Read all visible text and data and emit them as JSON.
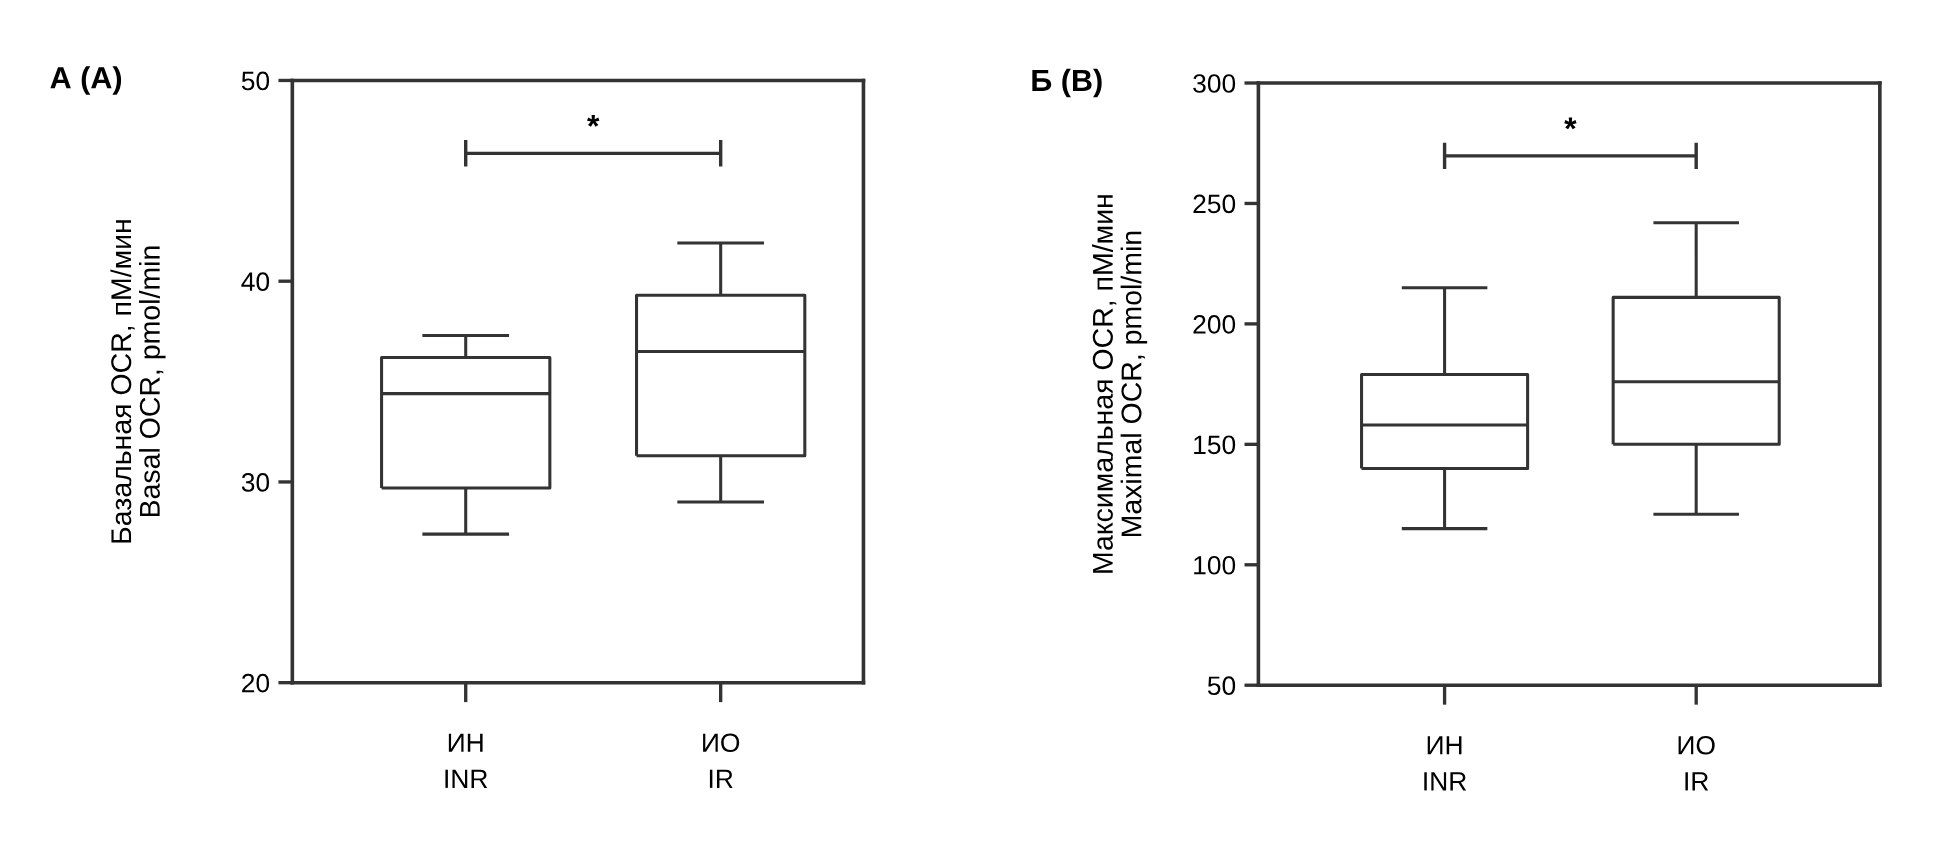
{
  "chart_data": [
    {
      "type": "box",
      "title": "А (A)",
      "ylabel": "Базальная OCR, пМ/мин\nBasal OCR, pmol/min",
      "categories": [
        "ИН\nINR",
        "ИО\nIR"
      ],
      "boxes": [
        {
          "low": 27.4,
          "q1": 29.7,
          "median": 34.4,
          "q3": 36.2,
          "high": 37.3
        },
        {
          "low": 29.0,
          "q1": 31.3,
          "median": 36.5,
          "q3": 39.3,
          "high": 41.9
        }
      ],
      "ylim": [
        20,
        50
      ],
      "yticks": [
        20,
        30,
        40,
        50
      ],
      "annotations": [
        "*"
      ]
    },
    {
      "type": "box",
      "title": "Б (B)",
      "ylabel": "Максимальная OCR, пМ/мин\nMaximal OCR, pmol/min",
      "categories": [
        "ИН\nINR",
        "ИО\nIR"
      ],
      "boxes": [
        {
          "low": 115,
          "q1": 140,
          "median": 158,
          "q3": 179,
          "high": 215
        },
        {
          "low": 121,
          "q1": 150,
          "median": 176,
          "q3": 211,
          "high": 242
        }
      ],
      "ylim": [
        50,
        300
      ],
      "yticks": [
        50,
        100,
        150,
        200,
        250,
        300
      ],
      "annotations": [
        "*"
      ]
    }
  ]
}
